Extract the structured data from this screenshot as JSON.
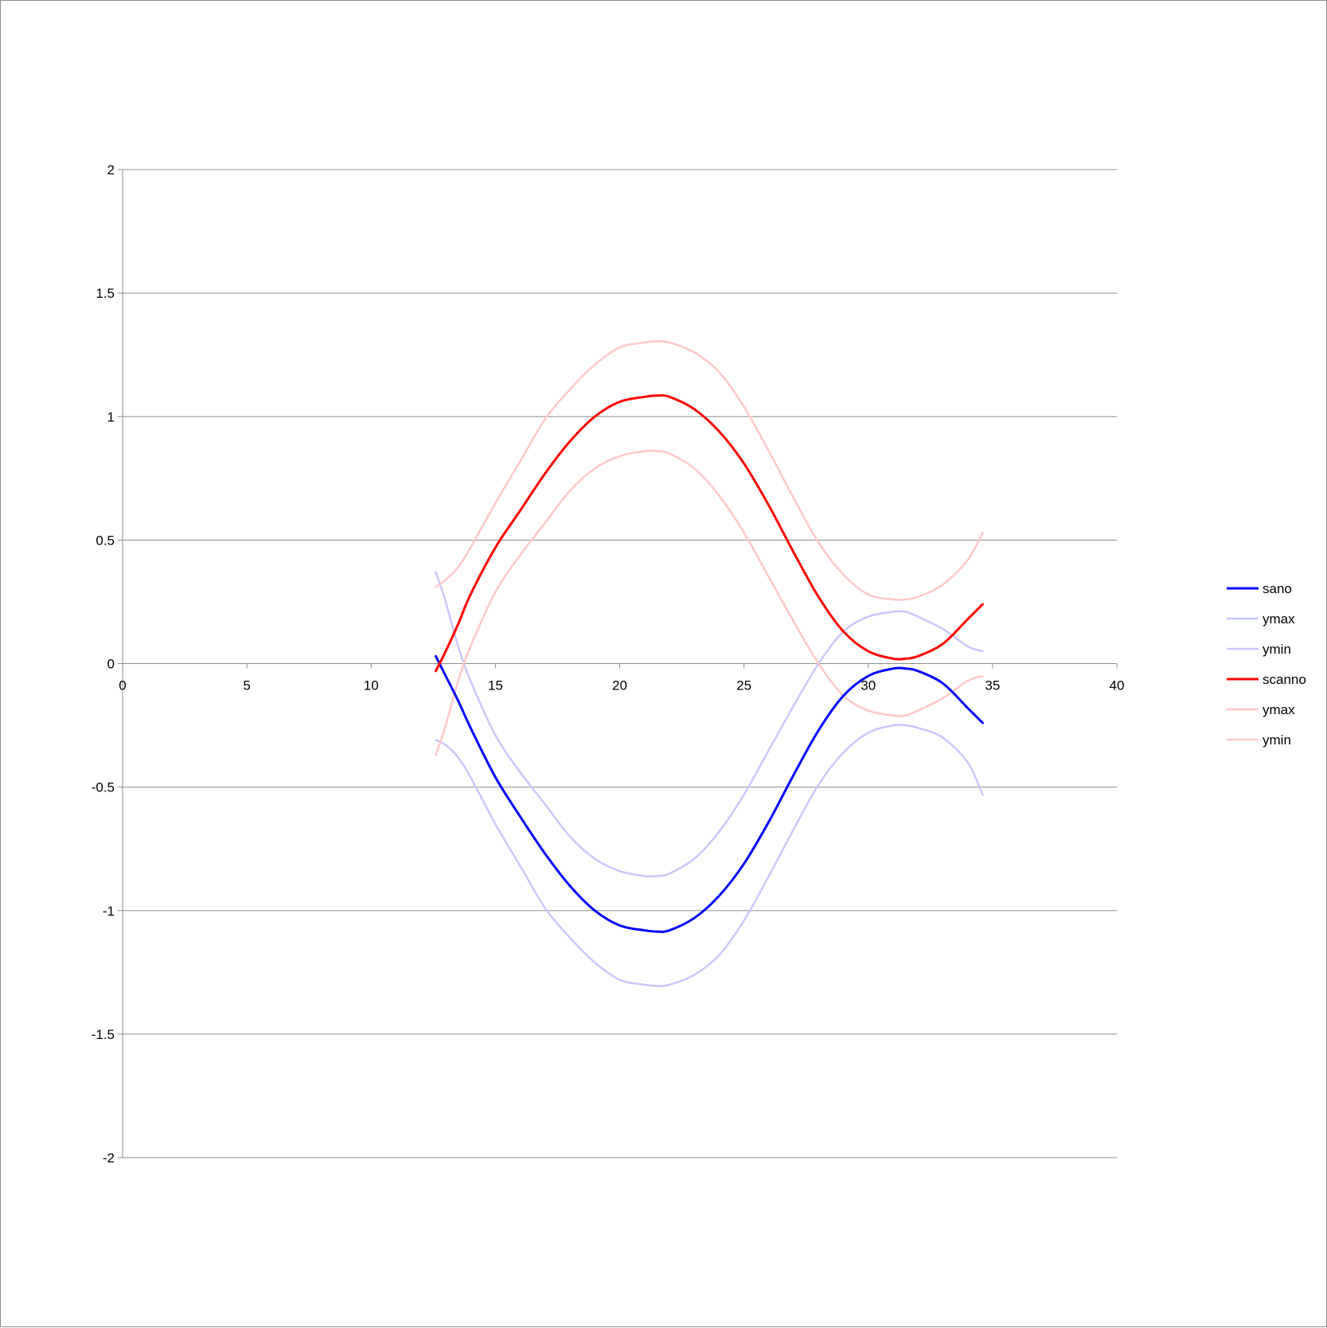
{
  "chart_data": {
    "type": "line",
    "title": "",
    "xlabel": "",
    "ylabel": "",
    "xlim": [
      0,
      40
    ],
    "ylim": [
      -2,
      2
    ],
    "x_ticks": [
      0,
      5,
      10,
      15,
      20,
      25,
      30,
      35,
      40
    ],
    "y_ticks": [
      2,
      1.5,
      1,
      0.5,
      0,
      -0.5,
      -1,
      -1.5,
      -2
    ],
    "x_tick_labels": [
      "0",
      "5",
      "10",
      "15",
      "20",
      "25",
      "30",
      "35",
      "40"
    ],
    "y_tick_labels": [
      "2",
      "1.5",
      "1",
      "0.5",
      "0",
      "-0.5",
      "-1",
      "-1.5",
      "-2"
    ],
    "grid": "horizontal",
    "legend_position": "right",
    "x": [
      12.6,
      13.0,
      13.5,
      14.0,
      15.0,
      16.0,
      17.0,
      18.0,
      19.0,
      20.0,
      21.0,
      21.5,
      22.0,
      23.0,
      24.0,
      25.0,
      26.0,
      27.0,
      28.0,
      29.0,
      30.0,
      31.0,
      31.5,
      32.0,
      33.0,
      34.0,
      34.6
    ],
    "series": [
      {
        "name": "sano",
        "color": "#0000ff",
        "emphasis": "primary",
        "values": [
          0.03,
          -0.05,
          -0.15,
          -0.26,
          -0.46,
          -0.62,
          -0.77,
          -0.9,
          -1.0,
          -1.06,
          -1.08,
          -1.085,
          -1.08,
          -1.03,
          -0.94,
          -0.81,
          -0.64,
          -0.45,
          -0.27,
          -0.13,
          -0.05,
          -0.02,
          -0.02,
          -0.03,
          -0.08,
          -0.18,
          -0.24
        ]
      },
      {
        "name": "ymax",
        "color": "#c8c8ff",
        "emphasis": "band",
        "values": [
          0.37,
          0.25,
          0.07,
          -0.07,
          -0.29,
          -0.44,
          -0.57,
          -0.7,
          -0.79,
          -0.84,
          -0.86,
          -0.86,
          -0.85,
          -0.79,
          -0.68,
          -0.53,
          -0.35,
          -0.17,
          0.0,
          0.13,
          0.19,
          0.21,
          0.21,
          0.19,
          0.14,
          0.07,
          0.05
        ]
      },
      {
        "name": "ymin",
        "color": "#c8c8ff",
        "emphasis": "band",
        "values": [
          -0.31,
          -0.33,
          -0.38,
          -0.46,
          -0.65,
          -0.82,
          -0.99,
          -1.11,
          -1.21,
          -1.28,
          -1.3,
          -1.305,
          -1.3,
          -1.26,
          -1.18,
          -1.04,
          -0.86,
          -0.67,
          -0.49,
          -0.36,
          -0.28,
          -0.25,
          -0.25,
          -0.26,
          -0.3,
          -0.4,
          -0.53
        ]
      },
      {
        "name": "scanno",
        "color": "#ff0000",
        "emphasis": "primary",
        "values": [
          -0.03,
          0.05,
          0.16,
          0.28,
          0.47,
          0.62,
          0.77,
          0.9,
          1.0,
          1.06,
          1.08,
          1.085,
          1.08,
          1.03,
          0.94,
          0.81,
          0.64,
          0.45,
          0.27,
          0.13,
          0.05,
          0.02,
          0.02,
          0.03,
          0.08,
          0.18,
          0.24
        ]
      },
      {
        "name": "ymax",
        "color": "#ffc8c8",
        "emphasis": "band",
        "values": [
          0.31,
          0.34,
          0.39,
          0.47,
          0.65,
          0.82,
          0.99,
          1.11,
          1.21,
          1.28,
          1.3,
          1.305,
          1.3,
          1.26,
          1.18,
          1.04,
          0.86,
          0.67,
          0.49,
          0.36,
          0.28,
          0.26,
          0.26,
          0.27,
          0.32,
          0.42,
          0.53
        ]
      },
      {
        "name": "ymin",
        "color": "#ffc8c8",
        "emphasis": "band",
        "values": [
          -0.37,
          -0.25,
          -0.07,
          0.07,
          0.29,
          0.44,
          0.57,
          0.7,
          0.79,
          0.84,
          0.86,
          0.86,
          0.85,
          0.79,
          0.68,
          0.53,
          0.35,
          0.17,
          0.0,
          -0.13,
          -0.19,
          -0.21,
          -0.21,
          -0.19,
          -0.14,
          -0.07,
          -0.05
        ]
      }
    ]
  }
}
